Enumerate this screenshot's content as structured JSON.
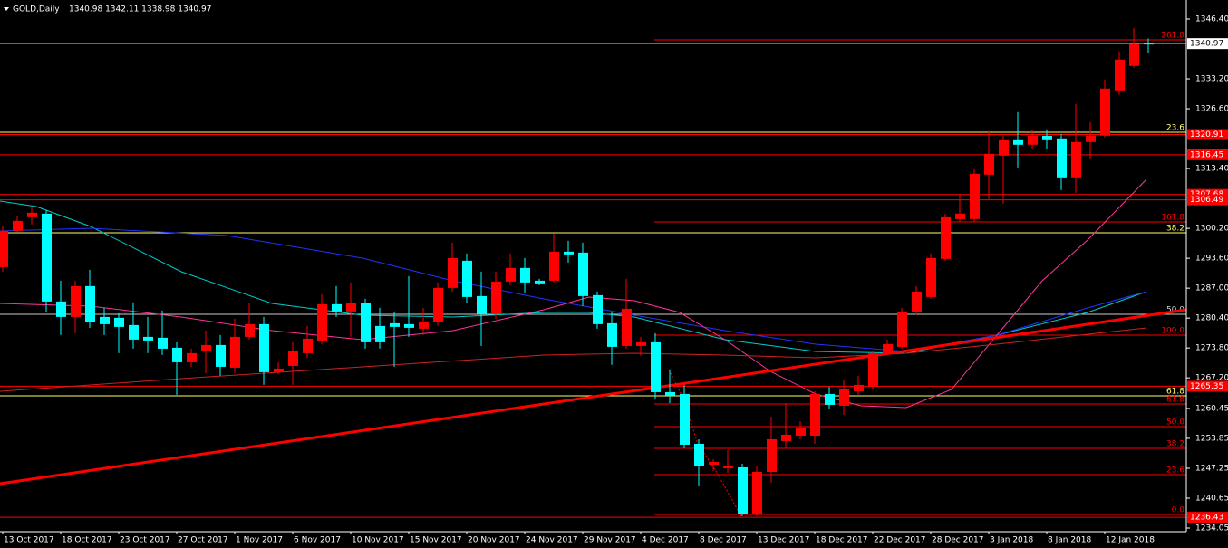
{
  "chart_data": {
    "type": "candlestick",
    "title": "GOLD,Daily",
    "subtitle": "1340.98 1342.11 1338.98 1340.97",
    "up_color": "#ff0000",
    "down_color": "#00ffff",
    "grid": false,
    "categories": [
      "13 Oct 2017",
      null,
      null,
      null,
      "18 Oct 2017",
      null,
      null,
      null,
      "23 Oct 2017",
      null,
      null,
      null,
      "27 Oct 2017",
      null,
      null,
      null,
      "1 Nov 2017",
      null,
      null,
      null,
      "6 Nov 2017",
      null,
      null,
      null,
      "10 Nov 2017",
      null,
      null,
      null,
      "15 Nov 2017",
      null,
      null,
      null,
      "20 Nov 2017",
      null,
      null,
      null,
      "24 Nov 2017",
      null,
      null,
      null,
      "29 Nov 2017",
      null,
      null,
      null,
      "4 Dec 2017",
      null,
      null,
      null,
      "8 Dec 2017",
      null,
      null,
      null,
      "13 Dec 2017",
      null,
      null,
      null,
      "18 Dec 2017",
      null,
      null,
      null,
      "22 Dec 2017",
      null,
      null,
      null,
      "28 Dec 2017",
      null,
      null,
      null,
      "3 Jan 2018",
      null,
      null,
      null,
      "8 Jan 2018",
      null,
      null,
      null,
      "12 Jan 2018",
      null,
      null,
      null
    ],
    "open": [
      1291.65,
      1299.65,
      1302.65,
      1303.45,
      1284.05,
      1280.65,
      1287.45,
      1280.65,
      1280.45,
      1278.85,
      1276.25,
      1276.05,
      1273.85,
      1270.65,
      1273.25,
      1274.45,
      1269.45,
      1276.25,
      1279.05,
      1268.45,
      1269.85,
      1272.65,
      1275.45,
      1283.45,
      1281.85,
      1283.65,
      1278.65,
      1279.25,
      1279.05,
      1278.05,
      1279.45,
      1287.05,
      1293.05,
      1285.25,
      1281.25,
      1288.45,
      1291.45,
      1288.65,
      1288.65,
      1295.05,
      1294.85,
      1285.45,
      1279.25,
      1274.25,
      1274.25,
      1275.05,
      1264.05,
      1263.65,
      1252.65,
      1248.05,
      1247.25,
      1247.45,
      1237.05,
      1246.45,
      1253.25,
      1254.45,
      1254.45,
      1263.65,
      1261.05,
      1264.25,
      1265.25,
      1272.45,
      1274.05,
      1281.65,
      1285.05,
      1293.45,
      1302.25,
      1302.25,
      1312.05,
      1316.25,
      1319.65,
      1318.65,
      1320.65,
      1320.05,
      1311.45,
      1319.25,
      1320.65,
      1330.65,
      1336.05,
      1340.98
    ],
    "high": [
      1300.65,
      1303.05,
      1305.05,
      1304.25,
      1288.65,
      1288.65,
      1291.05,
      1282.65,
      1281.45,
      1283.85,
      1280.65,
      1282.05,
      1275.05,
      1273.65,
      1277.65,
      1276.65,
      1280.25,
      1283.65,
      1280.65,
      1270.65,
      1275.05,
      1278.65,
      1285.65,
      1287.45,
      1288.25,
      1284.65,
      1282.65,
      1281.65,
      1289.65,
      1282.65,
      1288.25,
      1297.05,
      1294.65,
      1290.65,
      1290.65,
      1294.65,
      1293.65,
      1289.05,
      1299.05,
      1297.45,
      1297.05,
      1286.25,
      1281.65,
      1289.05,
      1276.25,
      1277.05,
      1269.05,
      1265.65,
      1253.65,
      1249.25,
      1251.25,
      1248.25,
      1247.65,
      1258.65,
      1261.65,
      1257.65,
      1264.25,
      1265.25,
      1266.65,
      1267.65,
      1273.25,
      1275.65,
      1282.65,
      1287.45,
      1294.65,
      1303.45,
      1307.65,
      1313.25,
      1321.65,
      1320.65,
      1325.85,
      1322.05,
      1322.05,
      1321.05,
      1327.65,
      1323.65,
      1333.05,
      1339.25,
      1344.45,
      1342.11
    ],
    "low": [
      1290.65,
      1299.45,
      1301.05,
      1281.65,
      1276.65,
      1277.05,
      1278.25,
      1276.65,
      1272.65,
      1273.65,
      1272.65,
      1272.25,
      1263.45,
      1269.65,
      1268.25,
      1267.65,
      1268.25,
      1275.65,
      1265.65,
      1268.05,
      1265.65,
      1271.65,
      1274.65,
      1280.65,
      1276.25,
      1273.65,
      1273.65,
      1269.65,
      1276.25,
      1276.65,
      1278.65,
      1286.25,
      1283.65,
      1274.25,
      1280.25,
      1287.65,
      1286.05,
      1287.65,
      1288.25,
      1292.65,
      1283.05,
      1278.05,
      1270.05,
      1273.65,
      1272.05,
      1262.65,
      1261.65,
      1251.65,
      1243.25,
      1246.65,
      1246.25,
      1236.65,
      1236.65,
      1244.05,
      1251.65,
      1253.65,
      1252.65,
      1260.25,
      1259.05,
      1263.25,
      1264.65,
      1272.25,
      1273.65,
      1281.05,
      1284.65,
      1293.05,
      1301.65,
      1301.65,
      1306.65,
      1305.65,
      1313.65,
      1317.65,
      1317.65,
      1308.65,
      1308.05,
      1315.65,
      1320.25,
      1329.65,
      1335.65,
      1338.98
    ],
    "close": [
      1299.65,
      1301.85,
      1303.65,
      1284.05,
      1280.65,
      1287.45,
      1279.45,
      1279.05,
      1278.45,
      1275.65,
      1275.45,
      1273.65,
      1270.65,
      1272.65,
      1274.45,
      1269.65,
      1276.25,
      1279.05,
      1268.45,
      1269.25,
      1273.05,
      1275.85,
      1283.45,
      1281.85,
      1283.65,
      1275.05,
      1275.05,
      1278.45,
      1278.25,
      1279.65,
      1287.05,
      1293.65,
      1285.05,
      1281.25,
      1288.45,
      1291.45,
      1288.25,
      1288.05,
      1295.05,
      1294.45,
      1285.25,
      1279.05,
      1274.05,
      1282.45,
      1275.05,
      1264.05,
      1263.25,
      1252.45,
      1247.65,
      1248.65,
      1247.85,
      1237.05,
      1246.45,
      1253.65,
      1254.65,
      1256.25,
      1263.65,
      1261.25,
      1264.65,
      1265.65,
      1272.65,
      1274.65,
      1281.85,
      1286.25,
      1293.65,
      1302.65,
      1303.45,
      1312.25,
      1316.65,
      1319.65,
      1318.65,
      1320.65,
      1319.65,
      1311.45,
      1319.25,
      1320.65,
      1331.05,
      1337.45,
      1340.85,
      1340.97
    ],
    "ylim": [
      1233.25,
      1350.6
    ],
    "yticks": [
      {
        "value": 1346.4,
        "label": "1346.40"
      },
      {
        "value": 1333.2,
        "label": "1333.20"
      },
      {
        "value": 1326.6,
        "label": "1326.60"
      },
      {
        "value": 1313.4,
        "label": "1313.40"
      },
      {
        "value": 1300.2,
        "label": "1300.20"
      },
      {
        "value": 1293.6,
        "label": "1293.60"
      },
      {
        "value": 1287,
        "label": "1287.00"
      },
      {
        "value": 1280.4,
        "label": "1280.40"
      },
      {
        "value": 1273.8,
        "label": "1273.80"
      },
      {
        "value": 1267.2,
        "label": "1267.20"
      },
      1260.45,
      1253.85,
      1247.25,
      1240.65,
      1234.05
    ],
    "current_price": 1340.97,
    "levels": [
      1320.91,
      1316.45,
      1307.68,
      1306.49,
      1265.35,
      1236.43
    ],
    "fib_labels": [
      "261.8",
      "23.6",
      "161.8",
      "38.2",
      "50.0",
      "100.0",
      "61.8",
      "61.8",
      "50.0",
      "38.2",
      "23.6",
      "0.0"
    ]
  }
}
